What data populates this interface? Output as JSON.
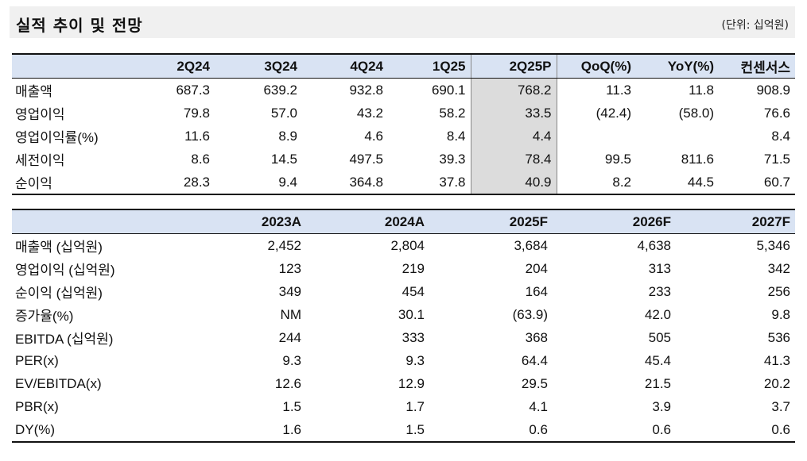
{
  "header": {
    "title": "실적 추이 및 전망",
    "unit": "(단위: 십억원)"
  },
  "quarterly": {
    "columns": [
      "2Q24",
      "3Q24",
      "4Q24",
      "1Q25",
      "2Q25P",
      "QoQ(%)",
      "YoY(%)",
      "컨센서스"
    ],
    "rows": [
      {
        "label": "매출액",
        "values": [
          "687.3",
          "639.2",
          "932.8",
          "690.1",
          "768.2",
          "11.3",
          "11.8",
          "908.9"
        ]
      },
      {
        "label": "영업이익",
        "values": [
          "79.8",
          "57.0",
          "43.2",
          "58.2",
          "33.5",
          "(42.4)",
          "(58.0)",
          "76.6"
        ]
      },
      {
        "label": "영업이익률(%)",
        "values": [
          "11.6",
          "8.9",
          "4.6",
          "8.4",
          "4.4",
          "",
          "",
          "8.4"
        ]
      },
      {
        "label": "세전이익",
        "values": [
          "8.6",
          "14.5",
          "497.5",
          "39.3",
          "78.4",
          "99.5",
          "811.6",
          "71.5"
        ]
      },
      {
        "label": "순이익",
        "values": [
          "28.3",
          "9.4",
          "364.8",
          "37.8",
          "40.9",
          "8.2",
          "44.5",
          "60.7"
        ]
      }
    ]
  },
  "annual": {
    "columns": [
      "2023A",
      "2024A",
      "2025F",
      "2026F",
      "2027F"
    ],
    "rows": [
      {
        "label": "매출액 (십억원)",
        "values": [
          "2,452",
          "2,804",
          "3,684",
          "4,638",
          "5,346"
        ]
      },
      {
        "label": "영업이익 (십억원)",
        "values": [
          "123",
          "219",
          "204",
          "313",
          "342"
        ]
      },
      {
        "label": "순이익 (십억원)",
        "values": [
          "349",
          "454",
          "164",
          "233",
          "256"
        ]
      },
      {
        "label": "증가율(%)",
        "values": [
          "NM",
          "30.1",
          "(63.9)",
          "42.0",
          "9.8"
        ]
      },
      {
        "label": "EBITDA (십억원)",
        "values": [
          "244",
          "333",
          "368",
          "505",
          "536"
        ]
      },
      {
        "label": "PER(x)",
        "values": [
          "9.3",
          "9.3",
          "64.4",
          "45.4",
          "41.3"
        ]
      },
      {
        "label": "EV/EBITDA(x)",
        "values": [
          "12.6",
          "12.9",
          "29.5",
          "21.5",
          "20.2"
        ]
      },
      {
        "label": "PBR(x)",
        "values": [
          "1.5",
          "1.7",
          "4.1",
          "3.9",
          "3.7"
        ]
      },
      {
        "label": "DY(%)",
        "values": [
          "1.6",
          "1.5",
          "0.6",
          "0.6",
          "0.6"
        ]
      }
    ]
  }
}
